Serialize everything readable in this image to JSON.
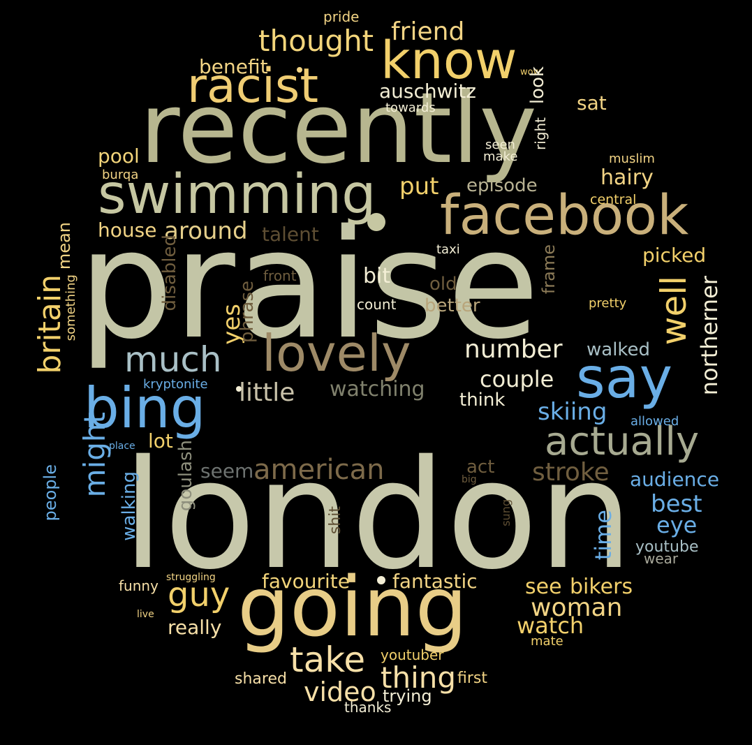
{
  "words": [
    {
      "text": "praise",
      "color": "#c3c5a6",
      "vertical": false
    },
    {
      "text": "london",
      "color": "#c7c8ab",
      "vertical": false
    },
    {
      "text": "recently",
      "color": "#b7b68f",
      "vertical": false
    },
    {
      "text": "going",
      "color": "#e8cd87",
      "vertical": false
    },
    {
      "text": "swimming",
      "color": "#c6c7a2",
      "vertical": false
    },
    {
      "text": "facebook",
      "color": "#c9b07b",
      "vertical": false
    },
    {
      "text": "know",
      "color": "#f2d06b",
      "vertical": false
    },
    {
      "text": "racist",
      "color": "#f0cd73",
      "vertical": false
    },
    {
      "text": "lovely",
      "color": "#9e8a67",
      "vertical": false
    },
    {
      "text": "say",
      "color": "#6aaee6",
      "vertical": false
    },
    {
      "text": "bing",
      "color": "#6aaee6",
      "vertical": false
    },
    {
      "text": "actually",
      "color": "#a7aa91",
      "vertical": false
    },
    {
      "text": "much",
      "color": "#a9c0c6",
      "vertical": false
    },
    {
      "text": "take",
      "color": "#f7e0a8",
      "vertical": false
    },
    {
      "text": "thought",
      "color": "#f3d57b",
      "vertical": false
    },
    {
      "text": "friend",
      "color": "#f2d485",
      "vertical": false
    },
    {
      "text": "american",
      "color": "#7d6a4a",
      "vertical": false
    },
    {
      "text": "guy",
      "color": "#f2d06b",
      "vertical": false
    },
    {
      "text": "thing",
      "color": "#f7e0a8",
      "vertical": false
    },
    {
      "text": "video",
      "color": "#f7e0a8",
      "vertical": false
    },
    {
      "text": "number",
      "color": "#f3eed5",
      "vertical": false
    },
    {
      "text": "little",
      "color": "#c8c1a9",
      "vertical": false
    },
    {
      "text": "watching",
      "color": "#80816d",
      "vertical": false
    },
    {
      "text": "around",
      "color": "#e5cf8b",
      "vertical": false
    },
    {
      "text": "put",
      "color": "#f2d06b",
      "vertical": false
    },
    {
      "text": "episode",
      "color": "#b8b293",
      "vertical": false
    },
    {
      "text": "couple",
      "color": "#f3eed5",
      "vertical": false
    },
    {
      "text": "stroke",
      "color": "#705e3f",
      "vertical": false
    },
    {
      "text": "skiing",
      "color": "#6aaee6",
      "vertical": false
    },
    {
      "text": "auschwitz",
      "color": "#f3eed5",
      "vertical": false
    },
    {
      "text": "benefit",
      "color": "#f2d485",
      "vertical": false
    },
    {
      "text": "pool",
      "color": "#f3d57b",
      "vertical": false
    },
    {
      "text": "house",
      "color": "#f2d485",
      "vertical": false
    },
    {
      "text": "talent",
      "color": "#5e4e33",
      "vertical": false
    },
    {
      "text": "hairy",
      "color": "#f2d485",
      "vertical": false
    },
    {
      "text": "sat",
      "color": "#f2d485",
      "vertical": false
    },
    {
      "text": "picked",
      "color": "#f2d06b",
      "vertical": false
    },
    {
      "text": "bit",
      "color": "#f3eed5",
      "vertical": false
    },
    {
      "text": "old",
      "color": "#6f5d3e",
      "vertical": false
    },
    {
      "text": "better",
      "color": "#b8a57b",
      "vertical": false
    },
    {
      "text": "walked",
      "color": "#a9c0c6",
      "vertical": false
    },
    {
      "text": "think",
      "color": "#f3eed5",
      "vertical": false
    },
    {
      "text": "lot",
      "color": "#f2d06b",
      "vertical": false
    },
    {
      "text": "seem",
      "color": "#6d7270",
      "vertical": false
    },
    {
      "text": "act",
      "color": "#6f5d3e",
      "vertical": false
    },
    {
      "text": "audience",
      "color": "#6aaee6",
      "vertical": false
    },
    {
      "text": "best",
      "color": "#6aaee6",
      "vertical": false
    },
    {
      "text": "eye",
      "color": "#6aaee6",
      "vertical": false
    },
    {
      "text": "favourite",
      "color": "#f3d57b",
      "vertical": false
    },
    {
      "text": "fantastic",
      "color": "#f2d485",
      "vertical": false
    },
    {
      "text": "see",
      "color": "#f2d06b",
      "vertical": false
    },
    {
      "text": "bikers",
      "color": "#f2d06b",
      "vertical": false
    },
    {
      "text": "woman",
      "color": "#f2d485",
      "vertical": false
    },
    {
      "text": "watch",
      "color": "#f2d06b",
      "vertical": false
    },
    {
      "text": "really",
      "color": "#f7e0a8",
      "vertical": false
    },
    {
      "text": "youtube",
      "color": "#a9c0c6",
      "vertical": false
    },
    {
      "text": "wear",
      "color": "#a8a89a",
      "vertical": false
    },
    {
      "text": "funny",
      "color": "#f7e0a8",
      "vertical": false
    },
    {
      "text": "youtuber",
      "color": "#f2d06b",
      "vertical": false
    },
    {
      "text": "shared",
      "color": "#f7e0a8",
      "vertical": false
    },
    {
      "text": "first",
      "color": "#f2d485",
      "vertical": false
    },
    {
      "text": "trying",
      "color": "#f3eed5",
      "vertical": false
    },
    {
      "text": "thanks",
      "color": "#f3eed5",
      "vertical": false
    },
    {
      "text": "pride",
      "color": "#f2d485",
      "vertical": false
    },
    {
      "text": "wow",
      "color": "#f2d06b",
      "vertical": false
    },
    {
      "text": "towards",
      "color": "#f3eed5",
      "vertical": false
    },
    {
      "text": "seen",
      "color": "#f3eed5",
      "vertical": false
    },
    {
      "text": "make",
      "color": "#f3eed5",
      "vertical": false
    },
    {
      "text": "muslim",
      "color": "#f2d485",
      "vertical": false
    },
    {
      "text": "central",
      "color": "#f2d06b",
      "vertical": false
    },
    {
      "text": "burqa",
      "color": "#f2d485",
      "vertical": false
    },
    {
      "text": "taxi",
      "color": "#f3eed5",
      "vertical": false
    },
    {
      "text": "front",
      "color": "#6f5d3e",
      "vertical": false
    },
    {
      "text": "count",
      "color": "#f3eed5",
      "vertical": false
    },
    {
      "text": "pretty",
      "color": "#f2d06b",
      "vertical": false
    },
    {
      "text": "allowed",
      "color": "#6aaee6",
      "vertical": false
    },
    {
      "text": "kryptonite",
      "color": "#6aaee6",
      "vertical": false
    },
    {
      "text": "place",
      "color": "#6aaee6",
      "vertical": false
    },
    {
      "text": "big",
      "color": "#6f5d3e",
      "vertical": false
    },
    {
      "text": "struggling",
      "color": "#f2d485",
      "vertical": false
    },
    {
      "text": "live",
      "color": "#f2d485",
      "vertical": false
    },
    {
      "text": "mate",
      "color": "#f2d06b",
      "vertical": false
    },
    {
      "text": "well",
      "color": "#f2d06b",
      "vertical": true
    },
    {
      "text": "northerner",
      "color": "#f3eed5",
      "vertical": true
    },
    {
      "text": "britain",
      "color": "#f2d06b",
      "vertical": true
    },
    {
      "text": "might",
      "color": "#6aaee6",
      "vertical": true
    },
    {
      "text": "yes",
      "color": "#f2d06b",
      "vertical": true
    },
    {
      "text": "mean",
      "color": "#f2d485",
      "vertical": true
    },
    {
      "text": "something",
      "color": "#f2d485",
      "vertical": true
    },
    {
      "text": "disabled",
      "color": "#6f5d3e",
      "vertical": true
    },
    {
      "text": "phrase",
      "color": "#6f5d3e",
      "vertical": true
    },
    {
      "text": "people",
      "color": "#6aaee6",
      "vertical": true
    },
    {
      "text": "walking",
      "color": "#6aaee6",
      "vertical": true
    },
    {
      "text": "goulash",
      "color": "#8e8f7d",
      "vertical": true
    },
    {
      "text": "shit",
      "color": "#5e4e33",
      "vertical": true
    },
    {
      "text": "sung",
      "color": "#5e4e33",
      "vertical": true
    },
    {
      "text": "time",
      "color": "#6aaee6",
      "vertical": true
    },
    {
      "text": "frame",
      "color": "#8b7a57",
      "vertical": true
    },
    {
      "text": "look",
      "color": "#f3eed5",
      "vertical": true
    },
    {
      "text": "right",
      "color": "#f3eed5",
      "vertical": true
    }
  ]
}
